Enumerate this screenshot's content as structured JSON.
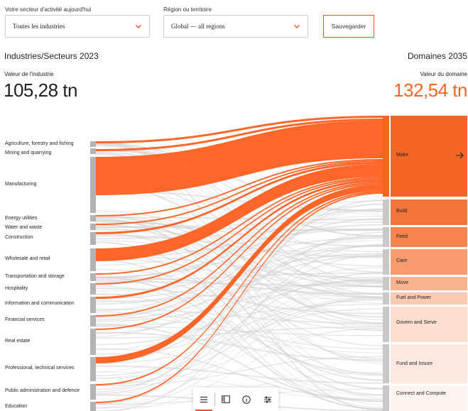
{
  "filters": {
    "sector_label": "Votre secteur d'activité aujourd'hui",
    "sector_value": "Toutes les industries",
    "region_label": "Région ou territoire",
    "region_value": "Global — all regions",
    "save_label": "Sauvegarder"
  },
  "headings": {
    "left_title": "Industries/Secteurs 2023",
    "right_title": "Domaines 2035",
    "left_value_label": "Valeur de l'industrie",
    "left_value": "105,28 tn",
    "right_value_label": "Valeur du domaine",
    "right_value": "132,54 tn"
  },
  "industries": [
    "Agriculture, forestry and fishing",
    "Mining and quarrying",
    "Manufacturing",
    "Energy utilities",
    "Water and waste",
    "Construction",
    "Wholesale and retail",
    "Transportation and storage",
    "Hospitality",
    "Information and communication",
    "Financial services",
    "Real estate",
    "Professional, technical services",
    "Public administration and defence",
    "Education"
  ],
  "domains": [
    "Make",
    "Build",
    "Feed",
    "Care",
    "Move",
    "Fuel and Power",
    "Govern and Serve",
    "Fund and Insure",
    "Connect and Compute"
  ],
  "colors": {
    "accent": "#f26522",
    "highlight_flow": "#ff5f1f",
    "neutral_node": "#b3b3b3",
    "neutral_flow": "#cfcfcf"
  },
  "toolbar": {
    "icons": [
      "menu-icon",
      "sidebar-icon",
      "info-icon",
      "sliders-icon"
    ]
  }
}
